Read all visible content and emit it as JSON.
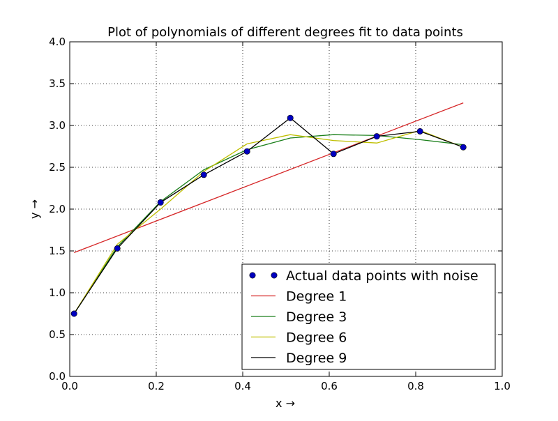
{
  "chart_data": {
    "type": "line",
    "title": "Plot of polynomials of different degrees fit to data points",
    "xlabel": "x →",
    "ylabel": "y →",
    "xlim": [
      0.0,
      1.0
    ],
    "ylim": [
      0.0,
      4.0
    ],
    "xticks": [
      "0.0",
      "0.2",
      "0.4",
      "0.6",
      "0.8",
      "1.0"
    ],
    "yticks": [
      "0.0",
      "0.5",
      "1.0",
      "1.5",
      "2.0",
      "2.5",
      "3.0",
      "3.5",
      "4.0"
    ],
    "xtick_values": [
      0.0,
      0.2,
      0.4,
      0.6,
      0.8,
      1.0
    ],
    "ytick_values": [
      0.0,
      0.5,
      1.0,
      1.5,
      2.0,
      2.5,
      3.0,
      3.5,
      4.0
    ],
    "grid": true,
    "grid_style": "dotted",
    "legend_position": "lower-right",
    "series": [
      {
        "name": "Actual data points with noise",
        "kind": "scatter",
        "color": "#0000bf",
        "x": [
          0.01,
          0.11,
          0.21,
          0.31,
          0.41,
          0.51,
          0.61,
          0.71,
          0.81,
          0.91
        ],
        "y": [
          0.75,
          1.53,
          2.08,
          2.41,
          2.69,
          3.09,
          2.66,
          2.87,
          2.93,
          2.74
        ]
      },
      {
        "name": "Degree 1",
        "kind": "line",
        "color": "#d62728",
        "x": [
          0.01,
          0.91
        ],
        "y": [
          1.48,
          3.27
        ]
      },
      {
        "name": "Degree 3",
        "kind": "line",
        "color": "#1a7f1a",
        "x": [
          0.01,
          0.11,
          0.21,
          0.31,
          0.41,
          0.51,
          0.61,
          0.71,
          0.81,
          0.91
        ],
        "y": [
          0.75,
          1.55,
          2.09,
          2.47,
          2.71,
          2.85,
          2.89,
          2.88,
          2.83,
          2.77
        ]
      },
      {
        "name": "Degree 6",
        "kind": "line",
        "color": "#bfbf00",
        "x": [
          0.01,
          0.11,
          0.21,
          0.31,
          0.41,
          0.51,
          0.61,
          0.71,
          0.81,
          0.91
        ],
        "y": [
          0.75,
          1.58,
          2.0,
          2.45,
          2.78,
          2.89,
          2.82,
          2.79,
          2.94,
          2.74
        ]
      },
      {
        "name": "Degree 9",
        "kind": "line",
        "color": "#000000",
        "x": [
          0.01,
          0.11,
          0.21,
          0.31,
          0.41,
          0.51,
          0.61,
          0.71,
          0.81,
          0.91
        ],
        "y": [
          0.75,
          1.53,
          2.08,
          2.41,
          2.69,
          3.09,
          2.66,
          2.87,
          2.93,
          2.74
        ]
      }
    ]
  }
}
